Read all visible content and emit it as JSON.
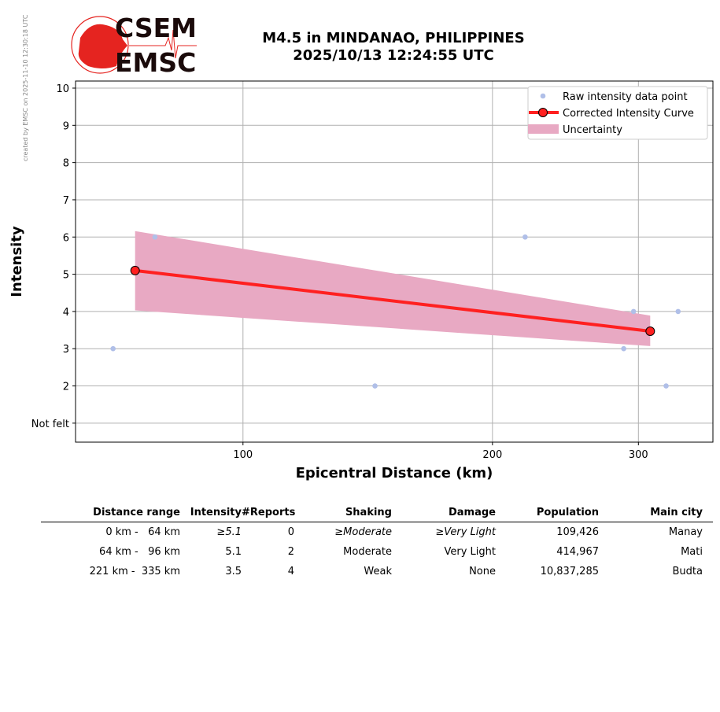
{
  "watermark": "created by EMSC on 2025-11-10 12:30:18 UTC",
  "logo": {
    "top": "CSEM",
    "bottom": "EMSC"
  },
  "header": {
    "line1": "M4.5 in MINDANAO, PHILIPPINES",
    "line2": "2025/10/13 12:24:55 UTC"
  },
  "chart_data": {
    "type": "scatter",
    "xlabel": "Epicentral Distance (km)",
    "ylabel": "Intensity",
    "xscale": "log",
    "xlim": [
      62.8,
      369
    ],
    "ylim": [
      0.49,
      10.19
    ],
    "xticks": [
      {
        "v": 100,
        "label": "100"
      },
      {
        "v": 200,
        "label": "200"
      },
      {
        "v": 300,
        "label": "300"
      }
    ],
    "yticks": [
      {
        "v": 1,
        "label": "Not felt"
      },
      {
        "v": 2,
        "label": "2"
      },
      {
        "v": 3,
        "label": "3"
      },
      {
        "v": 4,
        "label": "4"
      },
      {
        "v": 5,
        "label": "5"
      },
      {
        "v": 6,
        "label": "6"
      },
      {
        "v": 7,
        "label": "7"
      },
      {
        "v": 8,
        "label": "8"
      },
      {
        "v": 9,
        "label": "9"
      },
      {
        "v": 10,
        "label": "10"
      }
    ],
    "grid": true,
    "legend_position": "top-right",
    "series": [
      {
        "name": "Raw intensity data point",
        "type": "scatter",
        "color": "#b0bfe8",
        "points": [
          [
            69.7,
            3
          ],
          [
            78.3,
            6
          ],
          [
            144.3,
            2
          ],
          [
            219,
            6
          ],
          [
            288,
            3
          ],
          [
            296,
            4
          ],
          [
            324,
            2
          ],
          [
            335,
            4
          ]
        ]
      },
      {
        "name": "Corrected Intensity Curve",
        "type": "line",
        "color": "#ff2020",
        "points": [
          [
            74.1,
            5.1
          ],
          [
            310,
            3.47
          ]
        ]
      },
      {
        "name": "Uncertainty",
        "type": "area",
        "color": "#e8a9c3",
        "upper": [
          [
            74.1,
            6.16
          ],
          [
            310,
            3.89
          ]
        ],
        "lower": [
          [
            74.1,
            4.03
          ],
          [
            310,
            3.07
          ]
        ]
      }
    ]
  },
  "table": {
    "headers": [
      "Distance range",
      "Intensity",
      "#Reports",
      "Shaking",
      "Damage",
      "Population",
      "Main city"
    ],
    "rows": [
      [
        "0 km -   64 km",
        "≥5.1",
        "0",
        "≥Moderate",
        "≥Very Light",
        "109,426",
        "Manay"
      ],
      [
        "64 km -   96 km",
        "5.1",
        "2",
        "Moderate",
        "Very Light",
        "414,967",
        "Mati"
      ],
      [
        "221 km -  335 km",
        "3.5",
        "4",
        "Weak",
        "None",
        "10,837,285",
        "Budta"
      ]
    ]
  }
}
